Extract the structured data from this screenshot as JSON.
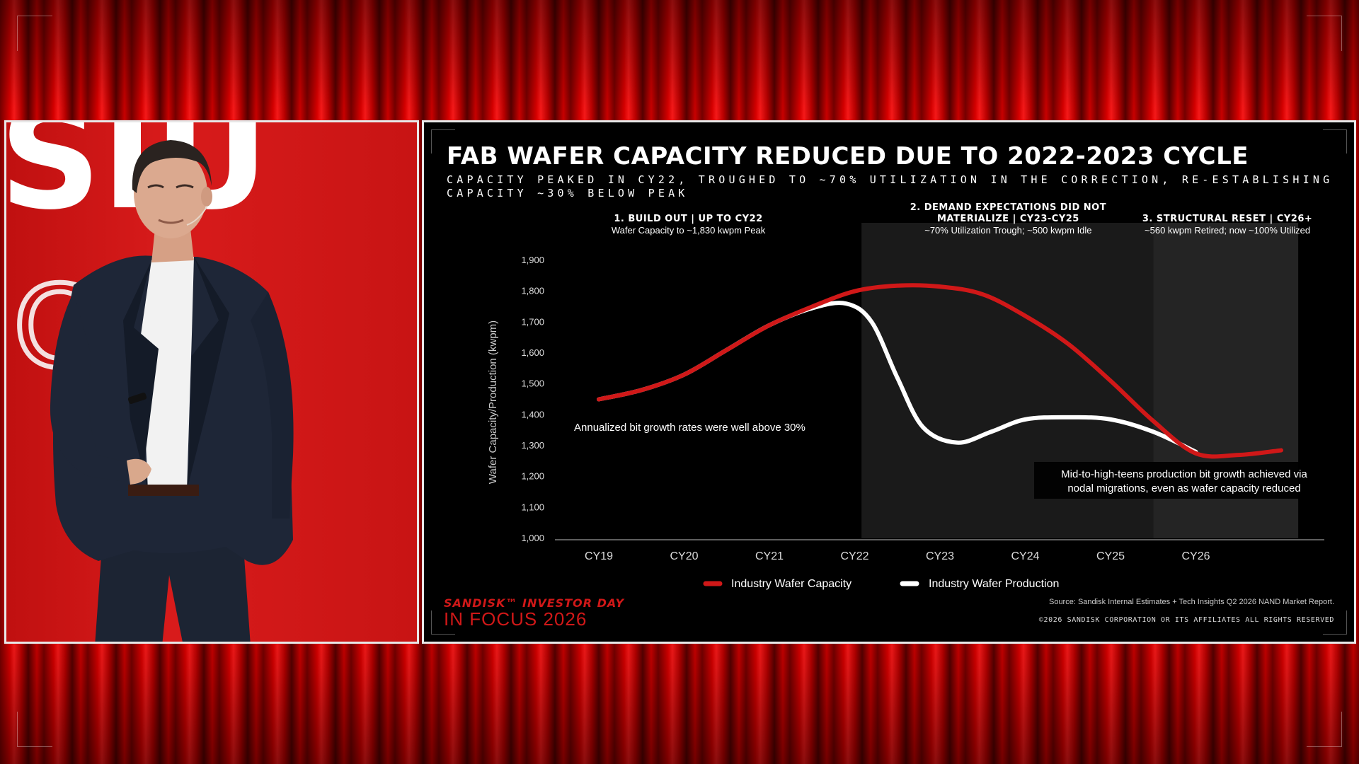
{
  "slide": {
    "title": "FAB WAFER CAPACITY REDUCED DUE TO 2022-2023 CYCLE",
    "subtitle": "CAPACITY PEAKED IN CY22, TROUGHED TO ~70% UTILIZATION IN THE CORRECTION, RE-ESTABLISHING CAPACITY ~30% BELOW PEAK",
    "source": "Source: Sandisk Internal Estimates + Tech Insights Q2 2026 NAND Market Report.",
    "copyright": "©2026 SANDISK CORPORATION OR ITS AFFILIATES ALL RIGHTS RESERVED",
    "logo_brand": "SANDISK™ INVESTOR DAY",
    "logo_event": "IN FOCUS 2026"
  },
  "backdrop": {
    "letters_top": "SIU",
    "letters_mid": "CUS"
  },
  "colors": {
    "capacity": "#d01818",
    "production": "#ffffff",
    "shade": "#1c1c1c",
    "stage_red": "#e00000"
  },
  "chart_data": {
    "type": "line",
    "title": "FAB WAFER CAPACITY REDUCED DUE TO 2022-2023 CYCLE",
    "ylabel": "Wafer Capacity/Production (kwpm)",
    "xlabel": "",
    "categories": [
      "CY19",
      "CY20",
      "CY21",
      "CY22",
      "CY23",
      "CY24",
      "CY25",
      "CY26"
    ],
    "y_ticks": [
      "1,000",
      "1,100",
      "1,200",
      "1,300",
      "1,400",
      "1,500",
      "1,600",
      "1,700",
      "1,800",
      "1,900"
    ],
    "ylim": [
      1000,
      1900
    ],
    "grid": false,
    "legend_position": "bottom-center",
    "series": [
      {
        "name": "Industry Wafer Capacity",
        "color": "#d01818",
        "x": [
          0,
          0.5,
          1,
          1.5,
          2,
          2.5,
          3,
          3.5,
          4,
          4.5,
          5,
          5.5,
          6,
          6.5,
          7,
          7.5,
          8
        ],
        "values": [
          1450,
          1480,
          1530,
          1610,
          1690,
          1750,
          1800,
          1818,
          1815,
          1790,
          1720,
          1630,
          1510,
          1380,
          1275,
          1270,
          1285
        ]
      },
      {
        "name": "Industry Wafer Production",
        "color": "#ffffff",
        "x": [
          0,
          0.5,
          1,
          1.5,
          2,
          2.5,
          2.9,
          3.2,
          3.5,
          3.8,
          4.2,
          4.6,
          5,
          5.5,
          6,
          6.5,
          7
        ],
        "values": [
          1450,
          1480,
          1530,
          1610,
          1690,
          1745,
          1760,
          1700,
          1520,
          1360,
          1310,
          1345,
          1385,
          1392,
          1385,
          1345,
          1280
        ]
      }
    ],
    "phases": [
      {
        "heading": "1. BUILD OUT | UP TO CY22",
        "detail": "Wafer Capacity to ~1,830 kwpm Peak",
        "center": 1.05
      },
      {
        "heading_line1": "2. DEMAND EXPECTATIONS DID NOT",
        "heading_line2": "MATERIALIZE | CY23-CY25",
        "detail": "~70% Utilization Trough; ~500 kwpm Idle",
        "center": 4.8,
        "from": 3.08,
        "to": 6.5
      },
      {
        "heading": "3. STRUCTURAL RESET | CY26+",
        "detail": "~560 kwpm Retired; now ~100% Utilized",
        "center": 7.37,
        "from": 6.5,
        "to": 8.2
      }
    ],
    "annotations": [
      {
        "text": "Annualized bit growth rates were well above 30%"
      },
      {
        "line1": "Mid-to-high-teens production bit growth achieved via",
        "line2": "nodal migrations, even as wafer capacity reduced"
      }
    ]
  }
}
